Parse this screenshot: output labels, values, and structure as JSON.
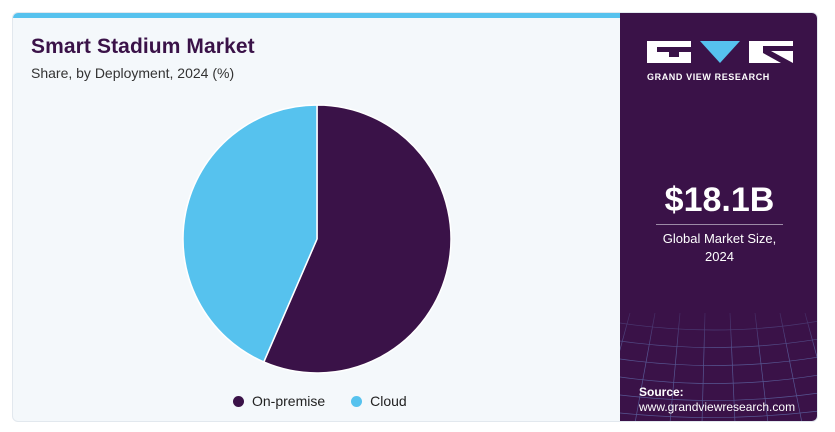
{
  "chart_data": {
    "type": "pie",
    "title": "Smart Stadium Market",
    "subtitle": "Share, by Deployment, 2024 (%)",
    "series": [
      {
        "name": "On-premise",
        "value": 56.5,
        "color": "#3a1248"
      },
      {
        "name": "Cloud",
        "value": 43.5,
        "color": "#56c2ee"
      }
    ],
    "legend_position": "bottom"
  },
  "brand": {
    "name": "GRAND VIEW RESEARCH",
    "logo_icons": [
      "gvr-g-block-icon",
      "gvr-v-triangle-icon",
      "gvr-r-block-icon"
    ],
    "colors": {
      "panel": "#3a1248",
      "accent": "#56c2ee"
    }
  },
  "summary": {
    "value": "$18.1B",
    "label_line1": "Global Market Size,",
    "label_line2": "2024"
  },
  "source": {
    "label": "Source:",
    "url": "www.grandviewresearch.com"
  }
}
